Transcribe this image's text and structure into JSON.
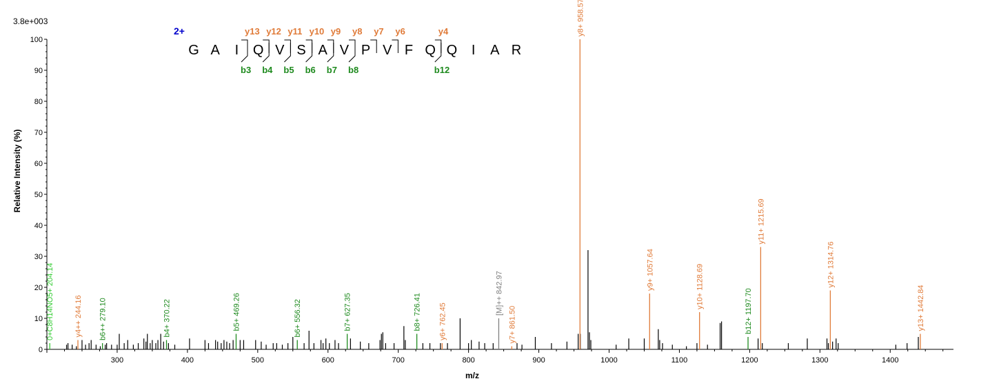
{
  "chart_data": {
    "type": "bar",
    "scale_label": "3.8e+003",
    "xlabel": "m/z",
    "ylabel": "Relative   Intensity (%)",
    "xlim": [
      200,
      1490
    ],
    "ylim": [
      0,
      100
    ],
    "x_ticks": [
      300,
      400,
      500,
      600,
      700,
      800,
      900,
      1000,
      1100,
      1200,
      1300,
      1400
    ],
    "y_ticks": [
      0,
      10,
      20,
      30,
      40,
      50,
      60,
      70,
      80,
      90,
      100
    ],
    "colors": {
      "y_ion": "#e07b39",
      "b_ion": "#1e8a1e",
      "precursor": "#808080",
      "other": "#33cc33",
      "peak": "#000000",
      "charge": "#0000cc"
    },
    "sequence": {
      "charge": "2+",
      "residues": [
        "G",
        "A",
        "I",
        "Q",
        "V",
        "S",
        "A",
        "V",
        "P",
        "V",
        "F",
        "Q",
        "Q",
        "I",
        "A",
        "R"
      ],
      "y_ions": [
        {
          "after": 3,
          "label": "y13"
        },
        {
          "after": 4,
          "label": "y12"
        },
        {
          "after": 5,
          "label": "y11"
        },
        {
          "after": 6,
          "label": "y10"
        },
        {
          "after": 7,
          "label": "y9"
        },
        {
          "after": 8,
          "label": "y8"
        },
        {
          "after": 9,
          "label": "y7"
        },
        {
          "after": 10,
          "label": "y6"
        },
        {
          "after": 12,
          "label": "y4"
        }
      ],
      "b_ions": [
        {
          "after": 3,
          "label": "b3"
        },
        {
          "after": 4,
          "label": "b4"
        },
        {
          "after": 5,
          "label": "b5"
        },
        {
          "after": 6,
          "label": "b6"
        },
        {
          "after": 7,
          "label": "b7"
        },
        {
          "after": 8,
          "label": "b8"
        },
        {
          "after": 12,
          "label": "b12"
        }
      ]
    },
    "annotated_peaks": [
      {
        "mz": 204.14,
        "intensity": 2,
        "label": "0+C8H14NO5+ 204.14",
        "type": "other"
      },
      {
        "mz": 244.16,
        "intensity": 3,
        "label": "y4++ 244.16",
        "type": "y"
      },
      {
        "mz": 247.15,
        "intensity": 2,
        "label": "y4++ 244.16:15",
        "type": "hidden"
      },
      {
        "mz": 279.1,
        "intensity": 2,
        "label": "b6++ 279.10",
        "type": "b"
      },
      {
        "mz": 370.22,
        "intensity": 3,
        "label": "b4+ 370.22",
        "type": "b"
      },
      {
        "mz": 469.26,
        "intensity": 5,
        "label": "b5+ 469.26",
        "type": "b"
      },
      {
        "mz": 556.32,
        "intensity": 3,
        "label": "b6+ 556.32",
        "type": "b"
      },
      {
        "mz": 627.35,
        "intensity": 5,
        "label": "b7+ 627.35",
        "type": "b"
      },
      {
        "mz": 726.41,
        "intensity": 5,
        "label": "b8+ 726.41",
        "type": "b"
      },
      {
        "mz": 762.45,
        "intensity": 2,
        "label": "y6+ 762.45",
        "type": "y"
      },
      {
        "mz": 842.97,
        "intensity": 10,
        "label": "[M]++ 842.97",
        "type": "precursor"
      },
      {
        "mz": 861.5,
        "intensity": 1,
        "label": "y7+ 861.50",
        "type": "y"
      },
      {
        "mz": 958.57,
        "intensity": 100,
        "label": "y8+ 958.57",
        "type": "y"
      },
      {
        "mz": 1057.64,
        "intensity": 18,
        "label": "y9+ 1057.64",
        "type": "y"
      },
      {
        "mz": 1128.69,
        "intensity": 12,
        "label": "y10+ 1128.69",
        "type": "y"
      },
      {
        "mz": 1197.7,
        "intensity": 4,
        "label": "b12+ 1197.70",
        "type": "b"
      },
      {
        "mz": 1215.69,
        "intensity": 33,
        "label": "y11+ 1215.69",
        "type": "y"
      },
      {
        "mz": 1314.76,
        "intensity": 19,
        "label": "y12+ 1314.76",
        "type": "y"
      },
      {
        "mz": 1442.84,
        "intensity": 5,
        "label": "y13+ 1442.84",
        "type": "y"
      }
    ],
    "peaks": [
      [
        228,
        1.5
      ],
      [
        230,
        2
      ],
      [
        236,
        1.5
      ],
      [
        242,
        1
      ],
      [
        250,
        3
      ],
      [
        255,
        1.5
      ],
      [
        260,
        2
      ],
      [
        263,
        3
      ],
      [
        270,
        1.5
      ],
      [
        276,
        1
      ],
      [
        283,
        1.5
      ],
      [
        285,
        2
      ],
      [
        292,
        1.5
      ],
      [
        300,
        1.5
      ],
      [
        303,
        5
      ],
      [
        310,
        2
      ],
      [
        315,
        3
      ],
      [
        323,
        1.5
      ],
      [
        330,
        2
      ],
      [
        338,
        3.5
      ],
      [
        341,
        2.5
      ],
      [
        343,
        5
      ],
      [
        347,
        2
      ],
      [
        350,
        3
      ],
      [
        355,
        2
      ],
      [
        358,
        3
      ],
      [
        362,
        5
      ],
      [
        366,
        2.5
      ],
      [
        373,
        2
      ],
      [
        382,
        1.5
      ],
      [
        403,
        3.5
      ],
      [
        425,
        3
      ],
      [
        430,
        2
      ],
      [
        440,
        3
      ],
      [
        443,
        2.5
      ],
      [
        448,
        2
      ],
      [
        452,
        3
      ],
      [
        456,
        2.5
      ],
      [
        460,
        2
      ],
      [
        465,
        3
      ],
      [
        475,
        3
      ],
      [
        480,
        3
      ],
      [
        497,
        3
      ],
      [
        505,
        2.5
      ],
      [
        512,
        1.5
      ],
      [
        522,
        2
      ],
      [
        527,
        2
      ],
      [
        535,
        1.5
      ],
      [
        543,
        2
      ],
      [
        550,
        4
      ],
      [
        566,
        2
      ],
      [
        573,
        6
      ],
      [
        580,
        2
      ],
      [
        590,
        3
      ],
      [
        593,
        2
      ],
      [
        597,
        3.5
      ],
      [
        602,
        2
      ],
      [
        610,
        3
      ],
      [
        615,
        2
      ],
      [
        632,
        3.5
      ],
      [
        646,
        2.5
      ],
      [
        658,
        2
      ],
      [
        674,
        3
      ],
      [
        676,
        5
      ],
      [
        678,
        5.5
      ],
      [
        682,
        2
      ],
      [
        694,
        2
      ],
      [
        708,
        7.5
      ],
      [
        710,
        3
      ],
      [
        735,
        2
      ],
      [
        745,
        2
      ],
      [
        760,
        2
      ],
      [
        770,
        2
      ],
      [
        788,
        10
      ],
      [
        800,
        2
      ],
      [
        804,
        3
      ],
      [
        815,
        2.5
      ],
      [
        823,
        2
      ],
      [
        835,
        2
      ],
      [
        869,
        2
      ],
      [
        876,
        1.5
      ],
      [
        895,
        4
      ],
      [
        918,
        2
      ],
      [
        940,
        2.5
      ],
      [
        956,
        5
      ],
      [
        959,
        5
      ],
      [
        970,
        32
      ],
      [
        972,
        5.5
      ],
      [
        974,
        3
      ],
      [
        1010,
        1.5
      ],
      [
        1028,
        3.5
      ],
      [
        1050,
        3.5
      ],
      [
        1070,
        6.5
      ],
      [
        1072,
        3
      ],
      [
        1076,
        2
      ],
      [
        1090,
        1.5
      ],
      [
        1110,
        1
      ],
      [
        1125,
        2
      ],
      [
        1140,
        1.5
      ],
      [
        1158,
        8.5
      ],
      [
        1160,
        9
      ],
      [
        1212,
        3.5
      ],
      [
        1218,
        2
      ],
      [
        1255,
        2
      ],
      [
        1282,
        3.5
      ],
      [
        1310,
        3.5
      ],
      [
        1312,
        2
      ],
      [
        1318,
        2.5
      ],
      [
        1323,
        3.5
      ],
      [
        1326,
        2
      ],
      [
        1408,
        1.5
      ],
      [
        1424,
        2
      ],
      [
        1440,
        4
      ]
    ]
  }
}
